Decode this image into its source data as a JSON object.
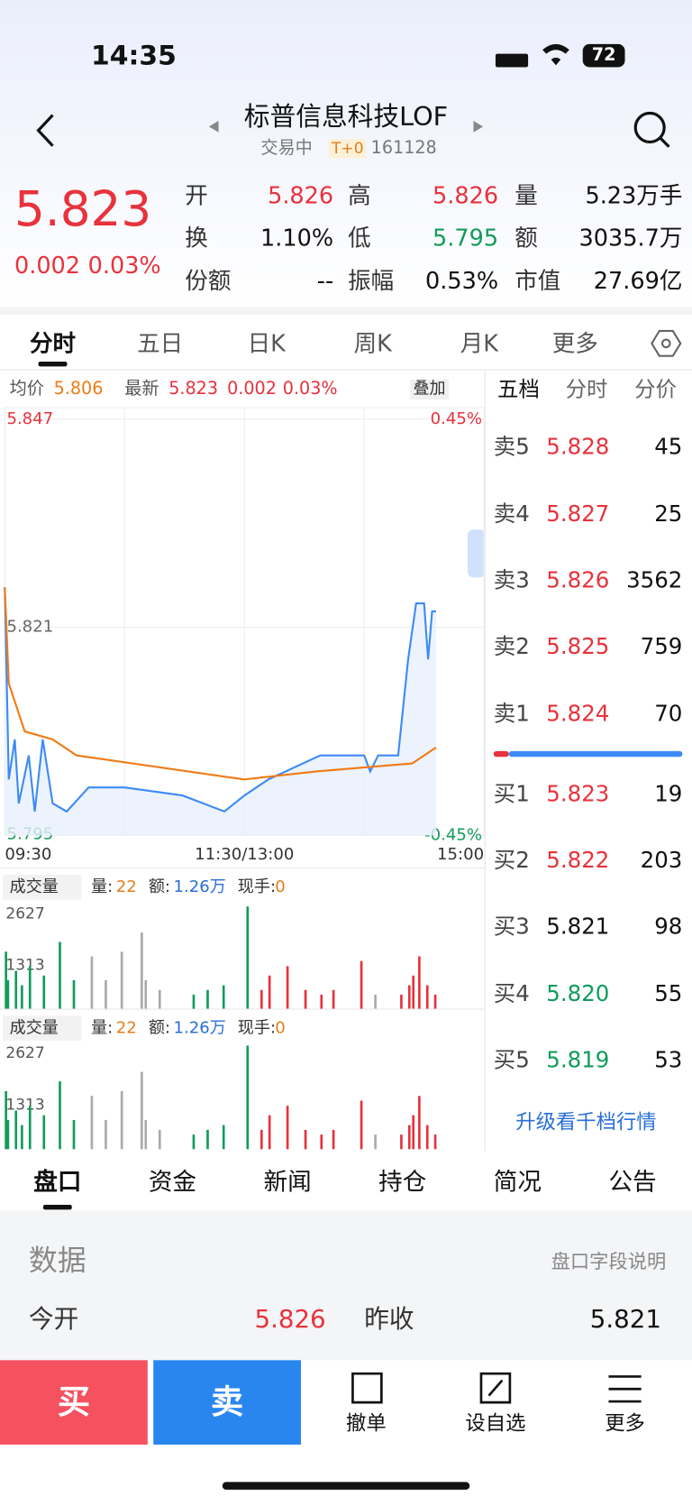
{
  "status_bar": {
    "time": "14:35",
    "battery": "72"
  },
  "header": {
    "title": "标普信息科技LOF",
    "status": "交易中",
    "badge": "T+0",
    "code": "161128"
  },
  "quote": {
    "price": "5.823",
    "change": "0.002",
    "change_pct": "0.03%",
    "fields": [
      {
        "label": "开",
        "value": "5.826",
        "color": "#e8323c"
      },
      {
        "label": "高",
        "value": "5.826",
        "color": "#e8323c"
      },
      {
        "label": "量",
        "value": "5.23万手",
        "color": "#111"
      },
      {
        "label": "换",
        "value": "1.10%",
        "color": "#111"
      },
      {
        "label": "低",
        "value": "5.795",
        "color": "#119c5a"
      },
      {
        "label": "额",
        "value": "3035.7万",
        "color": "#111"
      },
      {
        "label": "份额",
        "value": "--",
        "color": "#111"
      },
      {
        "label": "振幅",
        "value": "0.53%",
        "color": "#111"
      },
      {
        "label": "市值",
        "value": "27.69亿",
        "color": "#111"
      }
    ]
  },
  "tabs": [
    "分时",
    "五日",
    "日K",
    "周K",
    "月K",
    "更多"
  ],
  "legend": {
    "avg": "5.806",
    "last": "5.823",
    "change": "0.002",
    "change_pct": "0.03%",
    "overlay": "叠加"
  },
  "chart_data": [
    {
      "type": "line",
      "xlim": [
        0,
        240
      ],
      "xticks": [
        {
          "value": 0,
          "label": "09:30"
        },
        {
          "value": 120,
          "label": "11:30/13:00"
        },
        {
          "value": 240,
          "label": "15:00"
        }
      ],
      "ylim": [
        5.795,
        5.847
      ],
      "yticks": [
        5.795,
        5.821,
        5.847
      ],
      "y2lim": [
        -0.45,
        0.45
      ],
      "y2ticks": [
        {
          "value": -0.45,
          "label": "-0.45%"
        },
        {
          "value": 0.45,
          "label": "0.45%"
        }
      ],
      "series": [
        {
          "name": "最新",
          "color": "#3d8af7",
          "x": [
            0,
            2,
            5,
            7,
            12,
            15,
            19,
            24,
            31,
            42,
            60,
            89,
            110,
            120,
            132,
            158,
            180,
            183,
            187,
            197,
            202,
            206,
            210,
            212,
            214,
            216
          ],
          "values": [
            5.826,
            5.802,
            5.807,
            5.799,
            5.805,
            5.798,
            5.807,
            5.799,
            5.798,
            5.801,
            5.801,
            5.8,
            5.798,
            5.8,
            5.802,
            5.805,
            5.805,
            5.803,
            5.805,
            5.805,
            5.817,
            5.824,
            5.824,
            5.817,
            5.823,
            5.823
          ]
        },
        {
          "name": "均价",
          "color": "#f07a16",
          "x": [
            0,
            2,
            10,
            24,
            36,
            120,
            156,
            204,
            216
          ],
          "values": [
            5.826,
            5.814,
            5.808,
            5.807,
            5.805,
            5.802,
            5.803,
            5.804,
            5.806
          ]
        }
      ]
    },
    {
      "type": "bar",
      "title": "成交量",
      "stats": [
        {
          "label": "量:",
          "value": "22"
        },
        {
          "label": "额:",
          "value": "1.26万"
        },
        {
          "label": "现手:",
          "value": "0"
        }
      ],
      "xlim": [
        0,
        240
      ],
      "ylim": [
        0,
        2627
      ],
      "yticks": [
        1313,
        2627
      ],
      "x": [
        0,
        1,
        5,
        8,
        12,
        19,
        27,
        34,
        43,
        50,
        58,
        68,
        70,
        77,
        94,
        101,
        109,
        121,
        128,
        132,
        141,
        150,
        158,
        164,
        178,
        185,
        198,
        202,
        204,
        207,
        211,
        215
      ],
      "values": [
        1470,
        740,
        980,
        610,
        1100,
        860,
        1720,
        740,
        1350,
        740,
        1470,
        1960,
        740,
        490,
        370,
        490,
        610,
        2627,
        490,
        860,
        1100,
        490,
        370,
        490,
        1230,
        370,
        370,
        610,
        860,
        1350,
        610,
        370
      ],
      "colors": [
        "#119c5a",
        "#119c5a",
        "#119c5a",
        "#119c5a",
        "#119c5a",
        "#119c5a",
        "#119c5a",
        "#119c5a",
        "#aaaaaa",
        "#aaaaaa",
        "#aaaaaa",
        "#aaaaaa",
        "#aaaaaa",
        "#aaaaaa",
        "#119c5a",
        "#119c5a",
        "#119c5a",
        "#119c5a",
        "#e8323c",
        "#e8323c",
        "#e8323c",
        "#e8323c",
        "#e8323c",
        "#e8323c",
        "#e8323c",
        "#aaaaaa",
        "#e8323c",
        "#e8323c",
        "#e8323c",
        "#e8323c",
        "#e8323c",
        "#e8323c"
      ]
    }
  ],
  "order_book": {
    "tabs": [
      "五档",
      "分时",
      "分价"
    ],
    "asks": [
      {
        "label": "卖5",
        "price": "5.828",
        "volume": "45",
        "color": "#e8323c"
      },
      {
        "label": "卖4",
        "price": "5.827",
        "volume": "25",
        "color": "#e8323c"
      },
      {
        "label": "卖3",
        "price": "5.826",
        "volume": "3562",
        "color": "#e8323c"
      },
      {
        "label": "卖2",
        "price": "5.825",
        "volume": "759",
        "color": "#e8323c"
      },
      {
        "label": "卖1",
        "price": "5.824",
        "volume": "70",
        "color": "#e8323c"
      }
    ],
    "bids": [
      {
        "label": "买1",
        "price": "5.823",
        "volume": "19",
        "color": "#e8323c"
      },
      {
        "label": "买2",
        "price": "5.822",
        "volume": "203",
        "color": "#e8323c"
      },
      {
        "label": "买3",
        "price": "5.821",
        "volume": "98",
        "color": "#111"
      },
      {
        "label": "买4",
        "price": "5.820",
        "volume": "55",
        "color": "#119c5a"
      },
      {
        "label": "买5",
        "price": "5.819",
        "volume": "53",
        "color": "#119c5a"
      }
    ],
    "upgrade": "升级看千档行情"
  },
  "bottom_tabs": [
    "盘口",
    "资金",
    "新闻",
    "持仓",
    "简况",
    "公告"
  ],
  "data_section": {
    "title": "数据",
    "link": "盘口字段说明",
    "rows": [
      {
        "label": "今开",
        "value": "5.826"
      },
      {
        "label": "昨收",
        "value": "5.821"
      }
    ]
  },
  "action_bar": {
    "buy": "买",
    "sell": "卖",
    "actions": [
      "撤单",
      "设自选",
      "更多"
    ]
  }
}
